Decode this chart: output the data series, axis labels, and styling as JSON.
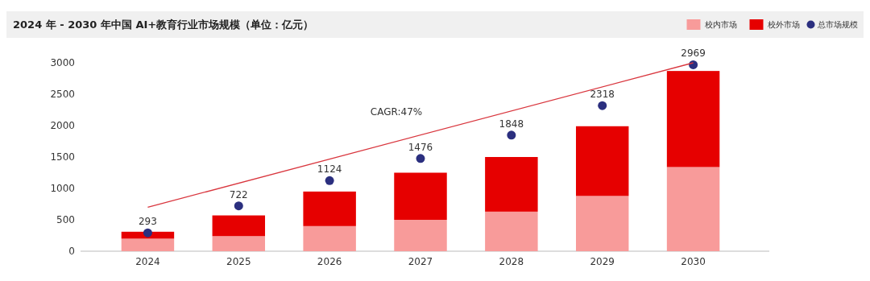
{
  "chart_data": {
    "type": "bar",
    "title": "2024 年 - 2030 年中国 AI+教育行业市场规模（单位：亿元）",
    "categories": [
      "2024",
      "2025",
      "2026",
      "2027",
      "2028",
      "2029",
      "2030"
    ],
    "stacked": true,
    "series": [
      {
        "name": "校内市场",
        "color": "#f89b9a",
        "values": [
          200,
          240,
          400,
          500,
          630,
          880,
          1340
        ]
      },
      {
        "name": "校外市场",
        "color": "#e60000",
        "values": [
          110,
          330,
          550,
          750,
          870,
          1110,
          1530
        ]
      },
      {
        "name": "总市场规模",
        "type": "scatter",
        "color": "#2b2f7f",
        "marker": "circle",
        "values": [
          293,
          722,
          1124,
          1476,
          1848,
          2318,
          2969
        ],
        "data_labels": true
      },
      {
        "type": "line",
        "color": "#d9363e",
        "values": [
          700,
          null,
          null,
          null,
          null,
          null,
          3000
        ]
      }
    ],
    "ylim": [
      0,
      3000
    ],
    "yticks": [
      0,
      500,
      1000,
      1500,
      2000,
      2500,
      3000
    ],
    "grid": false,
    "legend": "top right",
    "annotations": [
      "CAGR:47%"
    ]
  }
}
